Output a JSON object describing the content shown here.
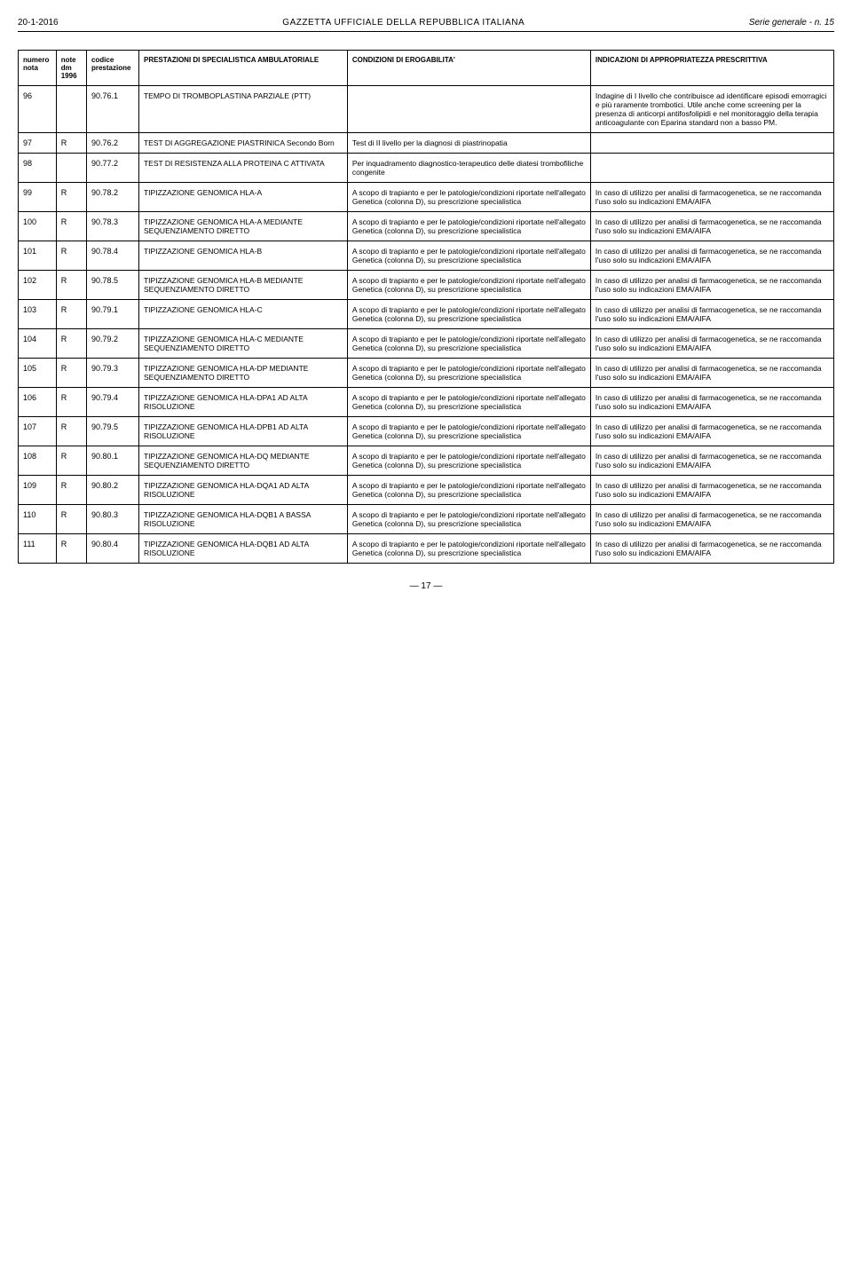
{
  "header": {
    "date": "20-1-2016",
    "center": "GAZZETTA UFFICIALE DELLA REPUBBLICA ITALIANA",
    "right": "Serie generale - n. 15"
  },
  "columns": [
    "numero nota",
    "note dm 1996",
    "codice prestazione",
    "PRESTAZIONI DI SPECIALISTICA AMBULATORIALE",
    "CONDIZIONI DI EROGABILITA'",
    "INDICAZIONI DI APPROPRIATEZZA PRESCRITTIVA"
  ],
  "rows": [
    {
      "num": "96",
      "note": "",
      "code": "90.76.1",
      "prest": "TEMPO DI TROMBOPLASTINA PARZIALE (PTT)",
      "cond": "",
      "ind": "Indagine di I livello che contribuisce ad identificare episodi emorragici e più raramente trombotici. Utile anche come screening per la presenza di anticorpi antifosfolipidi e nel monitoraggio della terapia anticoagulante con Eparina standard non a basso PM."
    },
    {
      "num": "97",
      "note": "R",
      "code": "90.76.2",
      "prest": "TEST DI AGGREGAZIONE PIASTRINICA Secondo Born",
      "cond": "Test di II livello per la diagnosi di piastrinopatia",
      "ind": ""
    },
    {
      "num": "98",
      "note": "",
      "code": "90.77.2",
      "prest": "TEST DI RESISTENZA ALLA PROTEINA C ATTIVATA",
      "cond": "Per inquadramento diagnostico-terapeutico delle diatesi trombofiliche congenite",
      "ind": ""
    },
    {
      "num": "99",
      "note": "R",
      "code": "90.78.2",
      "prest": "TIPIZZAZIONE GENOMICA HLA-A",
      "cond": "A scopo di trapianto e per le patologie/condizioni riportate nell'allegato Genetica (colonna D), su prescrizione specialistica",
      "ind": "In caso di utilizzo per analisi di farmacogenetica, se ne raccomanda l'uso solo su indicazioni EMA/AIFA"
    },
    {
      "num": "100",
      "note": "R",
      "code": "90.78.3",
      "prest": "TIPIZZAZIONE GENOMICA HLA-A MEDIANTE SEQUENZIAMENTO DIRETTO",
      "cond": "A scopo di trapianto e per le patologie/condizioni riportate nell'allegato Genetica (colonna D), su prescrizione specialistica",
      "ind": "In caso di utilizzo per analisi di farmacogenetica, se ne raccomanda l'uso solo su indicazioni EMA/AIFA"
    },
    {
      "num": "101",
      "note": "R",
      "code": "90.78.4",
      "prest": "TIPIZZAZIONE GENOMICA HLA-B",
      "cond": "A scopo di trapianto e per le patologie/condizioni riportate nell'allegato Genetica (colonna D), su prescrizione specialistica",
      "ind": "In caso di utilizzo per analisi di farmacogenetica, se ne raccomanda l'uso solo su indicazioni EMA/AIFA"
    },
    {
      "num": "102",
      "note": "R",
      "code": "90.78.5",
      "prest": "TIPIZZAZIONE GENOMICA HLA-B MEDIANTE SEQUENZIAMENTO DIRETTO",
      "cond": "A scopo di trapianto e per le patologie/condizioni riportate nell'allegato Genetica (colonna D), su prescrizione specialistica",
      "ind": "In caso di utilizzo per analisi di farmacogenetica, se ne raccomanda l'uso solo su indicazioni EMA/AIFA"
    },
    {
      "num": "103",
      "note": "R",
      "code": "90.79.1",
      "prest": "TIPIZZAZIONE GENOMICA HLA-C",
      "cond": "A scopo di trapianto e per le patologie/condizioni riportate nell'allegato Genetica (colonna D), su prescrizione specialistica",
      "ind": "In caso di utilizzo per analisi di farmacogenetica, se ne raccomanda l'uso solo su indicazioni EMA/AIFA"
    },
    {
      "num": "104",
      "note": "R",
      "code": "90.79.2",
      "prest": "TIPIZZAZIONE GENOMICA HLA-C MEDIANTE SEQUENZIAMENTO DIRETTO",
      "cond": "A scopo di trapianto e per le patologie/condizioni riportate nell'allegato Genetica (colonna D), su prescrizione specialistica",
      "ind": "In caso di utilizzo per analisi di farmacogenetica, se ne raccomanda l'uso solo su indicazioni EMA/AIFA"
    },
    {
      "num": "105",
      "note": "R",
      "code": "90.79.3",
      "prest": "TIPIZZAZIONE GENOMICA HLA-DP MEDIANTE SEQUENZIAMENTO DIRETTO",
      "cond": "A scopo di trapianto e per le patologie/condizioni riportate nell'allegato Genetica (colonna D), su prescrizione specialistica",
      "ind": "In caso di utilizzo per analisi di farmacogenetica, se ne raccomanda l'uso solo su indicazioni EMA/AIFA"
    },
    {
      "num": "106",
      "note": "R",
      "code": "90.79.4",
      "prest": "TIPIZZAZIONE GENOMICA HLA-DPA1 AD ALTA RISOLUZIONE",
      "cond": "A scopo di trapianto e per le patologie/condizioni riportate nell'allegato Genetica (colonna D), su prescrizione specialistica",
      "ind": "In caso di utilizzo per analisi di farmacogenetica, se ne raccomanda l'uso solo su indicazioni EMA/AIFA"
    },
    {
      "num": "107",
      "note": "R",
      "code": "90.79.5",
      "prest": "TIPIZZAZIONE GENOMICA HLA-DPB1 AD ALTA RISOLUZIONE",
      "cond": "A scopo di trapianto e per le patologie/condizioni riportate nell'allegato Genetica (colonna D), su prescrizione specialistica",
      "ind": "In caso di utilizzo per analisi di farmacogenetica, se ne raccomanda l'uso solo su indicazioni EMA/AIFA"
    },
    {
      "num": "108",
      "note": "R",
      "code": "90.80.1",
      "prest": "TIPIZZAZIONE GENOMICA HLA-DQ MEDIANTE SEQUENZIAMENTO DIRETTO",
      "cond": "A scopo di trapianto e per le patologie/condizioni riportate nell'allegato Genetica (colonna D), su prescrizione specialistica",
      "ind": "In caso di utilizzo per analisi di farmacogenetica, se ne raccomanda l'uso solo su indicazioni EMA/AIFA"
    },
    {
      "num": "109",
      "note": "R",
      "code": "90.80.2",
      "prest": "TIPIZZAZIONE GENOMICA HLA-DQA1 AD ALTA RISOLUZIONE",
      "cond": "A scopo di trapianto e per le patologie/condizioni riportate nell'allegato Genetica (colonna D), su prescrizione specialistica",
      "ind": "In caso di utilizzo per analisi di farmacogenetica, se ne raccomanda l'uso solo su indicazioni EMA/AIFA"
    },
    {
      "num": "110",
      "note": "R",
      "code": "90.80.3",
      "prest": "TIPIZZAZIONE GENOMICA HLA-DQB1 A BASSA RISOLUZIONE",
      "cond": "A scopo di trapianto e per le patologie/condizioni riportate nell'allegato Genetica (colonna D), su prescrizione specialistica",
      "ind": "In caso di utilizzo per analisi di farmacogenetica, se ne raccomanda l'uso solo su indicazioni EMA/AIFA"
    },
    {
      "num": "111",
      "note": "R",
      "code": "90.80.4",
      "prest": "TIPIZZAZIONE GENOMICA HLA-DQB1 AD ALTA RISOLUZIONE",
      "cond": "A scopo di trapianto e per le patologie/condizioni riportate nell'allegato Genetica (colonna D), su prescrizione specialistica",
      "ind": "In caso di utilizzo per analisi di farmacogenetica, se ne raccomanda l'uso solo su indicazioni EMA/AIFA"
    }
  ],
  "footer": "— 17 —"
}
